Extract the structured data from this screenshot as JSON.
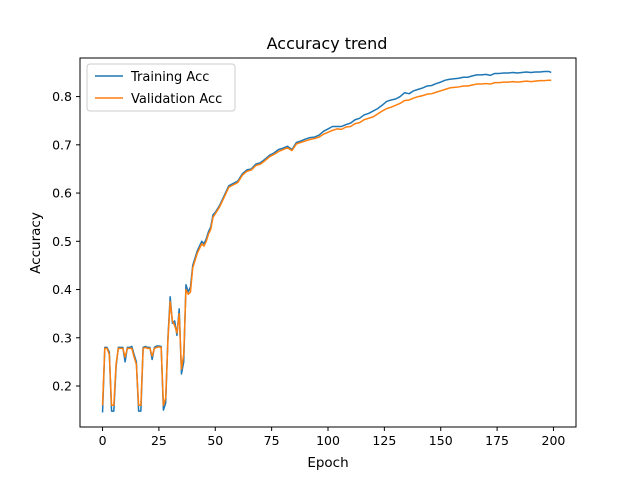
{
  "chart_data": {
    "type": "line",
    "title": "Accuracy trend",
    "xlabel": "Epoch",
    "ylabel": "Accuracy",
    "xlim": [
      -10,
      210
    ],
    "ylim": [
      0.115,
      0.88
    ],
    "xticks": [
      0,
      25,
      50,
      75,
      100,
      125,
      150,
      175,
      200
    ],
    "yticks": [
      0.2,
      0.3,
      0.4,
      0.5,
      0.6,
      0.7,
      0.8
    ],
    "grid": false,
    "legend_position": "top-left",
    "series": [
      {
        "name": "Training Acc",
        "color": "#1f77b4",
        "points": [
          [
            0,
            0.145
          ],
          [
            1,
            0.28
          ],
          [
            2,
            0.28
          ],
          [
            3,
            0.27
          ],
          [
            4,
            0.148
          ],
          [
            5,
            0.148
          ],
          [
            6,
            0.24
          ],
          [
            7,
            0.28
          ],
          [
            8,
            0.28
          ],
          [
            9,
            0.28
          ],
          [
            10,
            0.25
          ],
          [
            11,
            0.28
          ],
          [
            12,
            0.28
          ],
          [
            13,
            0.282
          ],
          [
            14,
            0.265
          ],
          [
            15,
            0.25
          ],
          [
            16,
            0.148
          ],
          [
            17,
            0.148
          ],
          [
            18,
            0.28
          ],
          [
            19,
            0.282
          ],
          [
            20,
            0.28
          ],
          [
            21,
            0.28
          ],
          [
            22,
            0.255
          ],
          [
            23,
            0.28
          ],
          [
            24,
            0.283
          ],
          [
            25,
            0.283
          ],
          [
            26,
            0.282
          ],
          [
            27,
            0.15
          ],
          [
            28,
            0.165
          ],
          [
            29,
            0.3
          ],
          [
            30,
            0.385
          ],
          [
            31,
            0.33
          ],
          [
            32,
            0.335
          ],
          [
            33,
            0.305
          ],
          [
            34,
            0.36
          ],
          [
            35,
            0.225
          ],
          [
            36,
            0.25
          ],
          [
            37,
            0.41
          ],
          [
            38,
            0.395
          ],
          [
            39,
            0.405
          ],
          [
            40,
            0.45
          ],
          [
            41,
            0.465
          ],
          [
            42,
            0.48
          ],
          [
            43,
            0.49
          ],
          [
            44,
            0.5
          ],
          [
            45,
            0.495
          ],
          [
            46,
            0.505
          ],
          [
            47,
            0.52
          ],
          [
            48,
            0.53
          ],
          [
            49,
            0.555
          ],
          [
            50,
            0.56
          ],
          [
            52,
            0.575
          ],
          [
            54,
            0.595
          ],
          [
            56,
            0.615
          ],
          [
            58,
            0.62
          ],
          [
            60,
            0.625
          ],
          [
            62,
            0.64
          ],
          [
            64,
            0.648
          ],
          [
            66,
            0.65
          ],
          [
            68,
            0.66
          ],
          [
            70,
            0.663
          ],
          [
            72,
            0.67
          ],
          [
            74,
            0.678
          ],
          [
            76,
            0.683
          ],
          [
            78,
            0.69
          ],
          [
            80,
            0.693
          ],
          [
            82,
            0.697
          ],
          [
            84,
            0.69
          ],
          [
            86,
            0.705
          ],
          [
            88,
            0.708
          ],
          [
            90,
            0.712
          ],
          [
            92,
            0.715
          ],
          [
            94,
            0.716
          ],
          [
            96,
            0.72
          ],
          [
            98,
            0.728
          ],
          [
            100,
            0.733
          ],
          [
            102,
            0.738
          ],
          [
            104,
            0.738
          ],
          [
            106,
            0.738
          ],
          [
            108,
            0.742
          ],
          [
            110,
            0.745
          ],
          [
            112,
            0.752
          ],
          [
            114,
            0.755
          ],
          [
            116,
            0.762
          ],
          [
            118,
            0.765
          ],
          [
            120,
            0.77
          ],
          [
            122,
            0.775
          ],
          [
            124,
            0.782
          ],
          [
            126,
            0.79
          ],
          [
            128,
            0.793
          ],
          [
            130,
            0.795
          ],
          [
            132,
            0.8
          ],
          [
            134,
            0.808
          ],
          [
            136,
            0.806
          ],
          [
            138,
            0.812
          ],
          [
            140,
            0.815
          ],
          [
            142,
            0.818
          ],
          [
            144,
            0.822
          ],
          [
            146,
            0.823
          ],
          [
            148,
            0.827
          ],
          [
            150,
            0.83
          ],
          [
            152,
            0.834
          ],
          [
            154,
            0.836
          ],
          [
            156,
            0.837
          ],
          [
            158,
            0.838
          ],
          [
            160,
            0.84
          ],
          [
            162,
            0.84
          ],
          [
            164,
            0.843
          ],
          [
            166,
            0.845
          ],
          [
            168,
            0.845
          ],
          [
            170,
            0.846
          ],
          [
            172,
            0.844
          ],
          [
            174,
            0.848
          ],
          [
            176,
            0.848
          ],
          [
            178,
            0.849
          ],
          [
            180,
            0.849
          ],
          [
            182,
            0.85
          ],
          [
            184,
            0.849
          ],
          [
            186,
            0.85
          ],
          [
            188,
            0.851
          ],
          [
            190,
            0.85
          ],
          [
            192,
            0.851
          ],
          [
            194,
            0.851
          ],
          [
            196,
            0.852
          ],
          [
            198,
            0.852
          ],
          [
            199,
            0.85
          ]
        ]
      },
      {
        "name": "Validation Acc",
        "color": "#ff7f0e",
        "points": [
          [
            0,
            0.16
          ],
          [
            1,
            0.278
          ],
          [
            2,
            0.278
          ],
          [
            3,
            0.265
          ],
          [
            4,
            0.16
          ],
          [
            5,
            0.16
          ],
          [
            6,
            0.245
          ],
          [
            7,
            0.278
          ],
          [
            8,
            0.278
          ],
          [
            9,
            0.278
          ],
          [
            10,
            0.26
          ],
          [
            11,
            0.278
          ],
          [
            12,
            0.278
          ],
          [
            13,
            0.278
          ],
          [
            14,
            0.26
          ],
          [
            15,
            0.245
          ],
          [
            16,
            0.16
          ],
          [
            17,
            0.16
          ],
          [
            18,
            0.278
          ],
          [
            19,
            0.28
          ],
          [
            20,
            0.278
          ],
          [
            21,
            0.278
          ],
          [
            22,
            0.262
          ],
          [
            23,
            0.278
          ],
          [
            24,
            0.28
          ],
          [
            25,
            0.281
          ],
          [
            26,
            0.28
          ],
          [
            27,
            0.16
          ],
          [
            28,
            0.175
          ],
          [
            29,
            0.295
          ],
          [
            30,
            0.375
          ],
          [
            31,
            0.335
          ],
          [
            32,
            0.325
          ],
          [
            33,
            0.31
          ],
          [
            34,
            0.35
          ],
          [
            35,
            0.235
          ],
          [
            36,
            0.265
          ],
          [
            37,
            0.4
          ],
          [
            38,
            0.39
          ],
          [
            39,
            0.395
          ],
          [
            40,
            0.445
          ],
          [
            41,
            0.46
          ],
          [
            42,
            0.475
          ],
          [
            43,
            0.485
          ],
          [
            44,
            0.495
          ],
          [
            45,
            0.49
          ],
          [
            46,
            0.5
          ],
          [
            47,
            0.515
          ],
          [
            48,
            0.525
          ],
          [
            49,
            0.55
          ],
          [
            50,
            0.557
          ],
          [
            52,
            0.572
          ],
          [
            54,
            0.592
          ],
          [
            56,
            0.612
          ],
          [
            58,
            0.617
          ],
          [
            60,
            0.622
          ],
          [
            62,
            0.637
          ],
          [
            64,
            0.645
          ],
          [
            66,
            0.648
          ],
          [
            68,
            0.657
          ],
          [
            70,
            0.66
          ],
          [
            72,
            0.667
          ],
          [
            74,
            0.675
          ],
          [
            76,
            0.68
          ],
          [
            78,
            0.686
          ],
          [
            80,
            0.69
          ],
          [
            82,
            0.694
          ],
          [
            84,
            0.688
          ],
          [
            86,
            0.702
          ],
          [
            88,
            0.705
          ],
          [
            90,
            0.708
          ],
          [
            92,
            0.711
          ],
          [
            94,
            0.713
          ],
          [
            96,
            0.716
          ],
          [
            98,
            0.722
          ],
          [
            100,
            0.726
          ],
          [
            102,
            0.73
          ],
          [
            104,
            0.733
          ],
          [
            106,
            0.732
          ],
          [
            108,
            0.737
          ],
          [
            110,
            0.738
          ],
          [
            112,
            0.744
          ],
          [
            114,
            0.746
          ],
          [
            116,
            0.752
          ],
          [
            118,
            0.755
          ],
          [
            120,
            0.758
          ],
          [
            122,
            0.764
          ],
          [
            124,
            0.77
          ],
          [
            126,
            0.775
          ],
          [
            128,
            0.778
          ],
          [
            130,
            0.782
          ],
          [
            132,
            0.786
          ],
          [
            134,
            0.792
          ],
          [
            136,
            0.793
          ],
          [
            138,
            0.797
          ],
          [
            140,
            0.8
          ],
          [
            142,
            0.802
          ],
          [
            144,
            0.805
          ],
          [
            146,
            0.806
          ],
          [
            148,
            0.809
          ],
          [
            150,
            0.812
          ],
          [
            152,
            0.815
          ],
          [
            154,
            0.818
          ],
          [
            156,
            0.819
          ],
          [
            158,
            0.82
          ],
          [
            160,
            0.822
          ],
          [
            162,
            0.822
          ],
          [
            164,
            0.824
          ],
          [
            166,
            0.826
          ],
          [
            168,
            0.826
          ],
          [
            170,
            0.827
          ],
          [
            172,
            0.826
          ],
          [
            174,
            0.829
          ],
          [
            176,
            0.829
          ],
          [
            178,
            0.83
          ],
          [
            180,
            0.83
          ],
          [
            182,
            0.831
          ],
          [
            184,
            0.83
          ],
          [
            186,
            0.831
          ],
          [
            188,
            0.832
          ],
          [
            190,
            0.831
          ],
          [
            192,
            0.832
          ],
          [
            194,
            0.833
          ],
          [
            196,
            0.833
          ],
          [
            198,
            0.834
          ],
          [
            199,
            0.834
          ]
        ]
      }
    ]
  }
}
